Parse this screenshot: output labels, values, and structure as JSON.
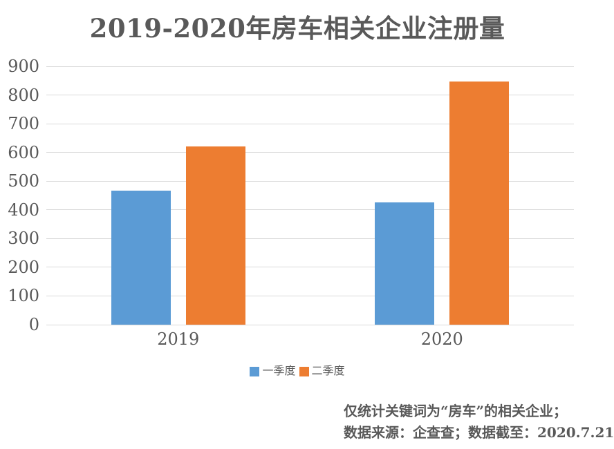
{
  "page": {
    "background": "#ffffff",
    "text_color": "#595959",
    "gridline_color": "#D9D9D9"
  },
  "chart_data": {
    "type": "bar",
    "title": "2019-2020年房车相关企业注册量",
    "categories": [
      "2019",
      "2020"
    ],
    "series": [
      {
        "name": "一季度",
        "color": "#5B9BD5",
        "values": [
          466,
          425
        ]
      },
      {
        "name": "二季度",
        "color": "#ED7D31",
        "values": [
          620,
          848
        ]
      }
    ],
    "xlabel": "",
    "ylabel": "",
    "ylim": [
      0,
      900
    ],
    "y_ticks": [
      0,
      100,
      200,
      300,
      400,
      500,
      600,
      700,
      800,
      900
    ],
    "grid": "horizontal",
    "legend_position": "bottom"
  },
  "footer": {
    "line1": "仅统计关键词为“房车”的相关企业；",
    "line2": "数据来源：企查查；数据截至：2020.7.21"
  }
}
